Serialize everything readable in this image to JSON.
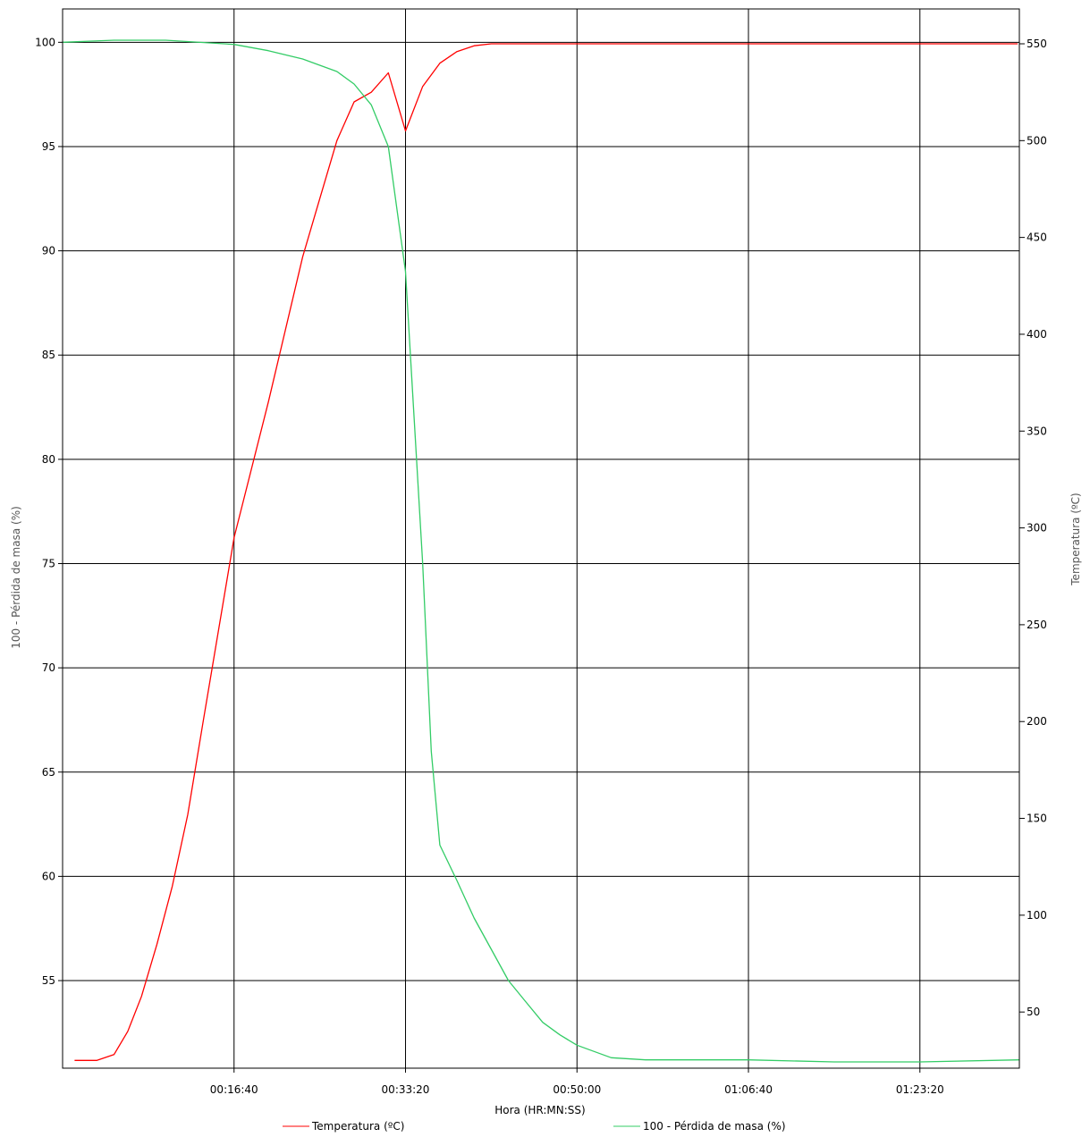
{
  "chart_data": {
    "type": "line",
    "xlabel": "Hora (HR:MN:SS)",
    "ylabel_left": "100 - Pérdida de masa (%)",
    "ylabel_right": "Temperatura (ºC)",
    "x_unit": "seconds",
    "xlim": [
      0,
      5580
    ],
    "x_ticks": [
      {
        "value": 1000,
        "label": "00:16:40"
      },
      {
        "value": 2000,
        "label": "00:33:20"
      },
      {
        "value": 3000,
        "label": "00:50:00"
      },
      {
        "value": 4000,
        "label": "01:06:40"
      },
      {
        "value": 5000,
        "label": "01:23:20"
      }
    ],
    "ylim_left": [
      50.8,
      101.6
    ],
    "y_ticks_left": [
      55,
      60,
      65,
      70,
      75,
      80,
      85,
      90,
      95,
      100
    ],
    "ylim_right": [
      21,
      568
    ],
    "y_ticks_right": [
      50,
      100,
      150,
      200,
      250,
      300,
      350,
      400,
      450,
      500,
      550
    ],
    "grid": true,
    "legend_position": "bottom",
    "series": [
      {
        "name": "Temperatura (ºC)",
        "color": "#ff0000",
        "axis": "right",
        "points": [
          [
            70,
            25
          ],
          [
            200,
            25
          ],
          [
            300,
            28
          ],
          [
            380,
            40
          ],
          [
            460,
            58
          ],
          [
            550,
            85
          ],
          [
            640,
            115
          ],
          [
            730,
            152
          ],
          [
            820,
            200
          ],
          [
            1000,
            295
          ],
          [
            1200,
            365
          ],
          [
            1400,
            440
          ],
          [
            1500,
            470
          ],
          [
            1600,
            500
          ],
          [
            1700,
            520
          ],
          [
            1800,
            525
          ],
          [
            1900,
            535
          ],
          [
            2000,
            505
          ],
          [
            2100,
            528
          ],
          [
            2200,
            540
          ],
          [
            2300,
            546
          ],
          [
            2400,
            549
          ],
          [
            2500,
            550
          ],
          [
            3000,
            550
          ],
          [
            4000,
            550
          ],
          [
            5000,
            550
          ],
          [
            5570,
            550
          ]
        ]
      },
      {
        "name": "100 - Pérdida de masa (%)",
        "color": "#33cc66",
        "axis": "left",
        "points": [
          [
            0,
            100.0
          ],
          [
            300,
            100.1
          ],
          [
            600,
            100.1
          ],
          [
            1000,
            99.9
          ],
          [
            1200,
            99.6
          ],
          [
            1400,
            99.2
          ],
          [
            1500,
            98.9
          ],
          [
            1600,
            98.6
          ],
          [
            1700,
            98.0
          ],
          [
            1800,
            97.0
          ],
          [
            1900,
            95.0
          ],
          [
            2000,
            89.0
          ],
          [
            2050,
            82.0
          ],
          [
            2100,
            75.0
          ],
          [
            2150,
            66.0
          ],
          [
            2200,
            61.5
          ],
          [
            2300,
            59.8
          ],
          [
            2400,
            58.0
          ],
          [
            2500,
            56.5
          ],
          [
            2600,
            55.0
          ],
          [
            2700,
            54.0
          ],
          [
            2800,
            53.0
          ],
          [
            2900,
            52.4
          ],
          [
            3000,
            51.9
          ],
          [
            3100,
            51.6
          ],
          [
            3200,
            51.3
          ],
          [
            3400,
            51.2
          ],
          [
            4000,
            51.2
          ],
          [
            4500,
            51.1
          ],
          [
            5000,
            51.1
          ],
          [
            5580,
            51.2
          ]
        ]
      }
    ]
  }
}
